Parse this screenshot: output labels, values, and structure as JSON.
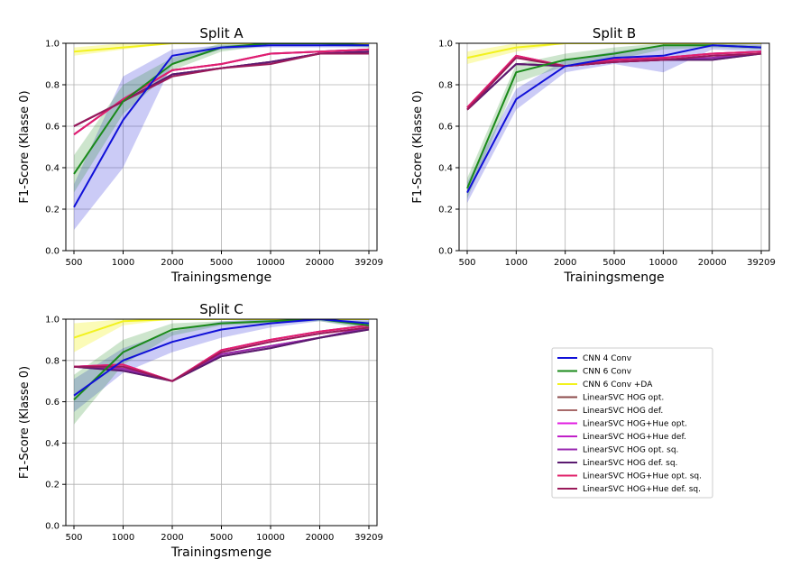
{
  "chart_data": [
    {
      "type": "line",
      "title": "Split A",
      "xlabel": "Trainingsmenge",
      "ylabel": "F1-Score (Klasse 0)",
      "categories": [
        "500",
        "1000",
        "2000",
        "5000",
        "10000",
        "20000",
        "39209"
      ],
      "ylim": [
        0,
        1.0
      ],
      "yticks": [
        "0.0",
        "0.2",
        "0.4",
        "0.6",
        "0.8",
        "1.0"
      ],
      "grid": true,
      "series": [
        {
          "name": "CNN 4 Conv",
          "values": [
            0.21,
            0.63,
            0.94,
            0.98,
            0.99,
            0.99,
            0.99
          ],
          "band_lower": [
            0.1,
            0.4,
            0.9,
            0.97,
            0.98,
            0.98,
            0.98
          ],
          "band_upper": [
            0.32,
            0.84,
            0.97,
            0.99,
            1.0,
            1.0,
            1.0
          ]
        },
        {
          "name": "CNN 6 Conv",
          "values": [
            0.37,
            0.72,
            0.9,
            0.98,
            1.0,
            1.0,
            0.99
          ],
          "band_lower": [
            0.28,
            0.66,
            0.87,
            0.96,
            0.99,
            0.99,
            0.98
          ],
          "band_upper": [
            0.46,
            0.8,
            0.93,
            1.0,
            1.0,
            1.0,
            1.0
          ]
        },
        {
          "name": "CNN 6 Conv +DA",
          "values": [
            0.96,
            0.98,
            1.0,
            1.0,
            1.0,
            1.0,
            1.0
          ],
          "band_lower": [
            0.94,
            0.97,
            1.0,
            1.0,
            1.0,
            1.0,
            1.0
          ],
          "band_upper": [
            0.98,
            1.0,
            1.0,
            1.0,
            1.0,
            1.0,
            1.0
          ]
        },
        {
          "name": "LinearSVC HOG opt.",
          "values": [
            0.6,
            0.72,
            0.85,
            0.88,
            0.91,
            0.95,
            0.96
          ]
        },
        {
          "name": "LinearSVC HOG def.",
          "values": [
            0.6,
            0.72,
            0.85,
            0.88,
            0.91,
            0.95,
            0.96
          ]
        },
        {
          "name": "LinearSVC HOG+Hue opt.",
          "values": [
            0.56,
            0.73,
            0.87,
            0.9,
            0.95,
            0.96,
            0.97
          ]
        },
        {
          "name": "LinearSVC HOG+Hue def.",
          "values": [
            0.56,
            0.73,
            0.87,
            0.9,
            0.95,
            0.96,
            0.97
          ]
        },
        {
          "name": "LinearSVC HOG opt. sq.",
          "values": [
            0.6,
            0.72,
            0.85,
            0.88,
            0.91,
            0.95,
            0.96
          ]
        },
        {
          "name": "LinearSVC HOG def. sq.",
          "values": [
            0.6,
            0.72,
            0.85,
            0.88,
            0.91,
            0.95,
            0.96
          ]
        },
        {
          "name": "LinearSVC HOG+Hue opt. sq.",
          "values": [
            0.56,
            0.73,
            0.87,
            0.9,
            0.95,
            0.96,
            0.97
          ]
        },
        {
          "name": "LinearSVC HOG+Hue def. sq.",
          "values": [
            0.6,
            0.72,
            0.84,
            0.88,
            0.9,
            0.95,
            0.95
          ]
        }
      ]
    },
    {
      "type": "line",
      "title": "Split B",
      "xlabel": "Trainingsmenge",
      "ylabel": "F1-Score (Klasse 0)",
      "categories": [
        "500",
        "1000",
        "2000",
        "5000",
        "10000",
        "20000",
        "39209"
      ],
      "ylim": [
        0,
        1.0
      ],
      "yticks": [
        "0.0",
        "0.2",
        "0.4",
        "0.6",
        "0.8",
        "1.0"
      ],
      "grid": true,
      "series": [
        {
          "name": "CNN 4 Conv",
          "values": [
            0.28,
            0.73,
            0.89,
            0.93,
            0.94,
            0.99,
            0.98
          ],
          "band_lower": [
            0.23,
            0.68,
            0.86,
            0.9,
            0.86,
            0.97,
            0.96
          ],
          "band_upper": [
            0.33,
            0.78,
            0.92,
            0.96,
            0.99,
            1.0,
            1.0
          ]
        },
        {
          "name": "CNN 6 Conv",
          "values": [
            0.3,
            0.86,
            0.92,
            0.95,
            0.99,
            0.99,
            0.98
          ],
          "band_lower": [
            0.25,
            0.81,
            0.89,
            0.92,
            0.97,
            0.98,
            0.97
          ],
          "band_upper": [
            0.35,
            0.9,
            0.95,
            0.98,
            1.0,
            1.0,
            0.99
          ]
        },
        {
          "name": "CNN 6 Conv +DA",
          "values": [
            0.93,
            0.98,
            1.0,
            1.0,
            1.0,
            1.0,
            1.0
          ],
          "band_lower": [
            0.9,
            0.96,
            1.0,
            1.0,
            1.0,
            1.0,
            1.0
          ],
          "band_upper": [
            0.96,
            1.0,
            1.0,
            1.0,
            1.0,
            1.0,
            1.0
          ]
        },
        {
          "name": "LinearSVC HOG opt.",
          "values": [
            0.68,
            0.9,
            0.89,
            0.91,
            0.92,
            0.93,
            0.95
          ]
        },
        {
          "name": "LinearSVC HOG def.",
          "values": [
            0.68,
            0.9,
            0.89,
            0.91,
            0.92,
            0.92,
            0.95
          ]
        },
        {
          "name": "LinearSVC HOG+Hue opt.",
          "values": [
            0.69,
            0.94,
            0.89,
            0.92,
            0.93,
            0.95,
            0.96
          ]
        },
        {
          "name": "LinearSVC HOG+Hue def.",
          "values": [
            0.69,
            0.94,
            0.89,
            0.92,
            0.93,
            0.95,
            0.96
          ]
        },
        {
          "name": "LinearSVC HOG opt. sq.",
          "values": [
            0.68,
            0.9,
            0.89,
            0.91,
            0.92,
            0.93,
            0.95
          ]
        },
        {
          "name": "LinearSVC HOG def. sq.",
          "values": [
            0.68,
            0.9,
            0.89,
            0.91,
            0.92,
            0.92,
            0.95
          ]
        },
        {
          "name": "LinearSVC HOG+Hue opt. sq.",
          "values": [
            0.69,
            0.94,
            0.89,
            0.92,
            0.93,
            0.95,
            0.96
          ]
        },
        {
          "name": "LinearSVC HOG+Hue def. sq.",
          "values": [
            0.68,
            0.93,
            0.89,
            0.91,
            0.92,
            0.94,
            0.95
          ]
        }
      ]
    },
    {
      "type": "line",
      "title": "Split C",
      "xlabel": "Trainingsmenge",
      "ylabel": "F1-Score (Klasse 0)",
      "categories": [
        "500",
        "1000",
        "2000",
        "5000",
        "10000",
        "20000",
        "39209"
      ],
      "ylim": [
        0,
        1.0
      ],
      "yticks": [
        "0.0",
        "0.2",
        "0.4",
        "0.6",
        "0.8",
        "1.0"
      ],
      "grid": true,
      "series": [
        {
          "name": "CNN 4 Conv",
          "values": [
            0.63,
            0.8,
            0.89,
            0.95,
            0.98,
            1.0,
            0.98
          ],
          "band_lower": [
            0.55,
            0.74,
            0.84,
            0.91,
            0.96,
            0.99,
            0.96
          ],
          "band_upper": [
            0.71,
            0.86,
            0.94,
            0.99,
            1.0,
            1.0,
            1.0
          ]
        },
        {
          "name": "CNN 6 Conv",
          "values": [
            0.61,
            0.84,
            0.95,
            0.98,
            0.99,
            1.0,
            0.97
          ],
          "band_lower": [
            0.49,
            0.78,
            0.92,
            0.97,
            0.98,
            0.99,
            0.95
          ],
          "band_upper": [
            0.73,
            0.9,
            0.98,
            0.99,
            1.0,
            1.0,
            0.99
          ]
        },
        {
          "name": "CNN 6 Conv +DA",
          "values": [
            0.91,
            0.99,
            1.0,
            1.0,
            1.0,
            1.0,
            1.0
          ],
          "band_lower": [
            0.84,
            0.97,
            1.0,
            1.0,
            1.0,
            1.0,
            1.0
          ],
          "band_upper": [
            0.98,
            1.0,
            1.0,
            1.0,
            1.0,
            1.0,
            1.0
          ]
        },
        {
          "name": "LinearSVC HOG opt.",
          "values": [
            0.77,
            0.76,
            0.7,
            0.83,
            0.87,
            0.91,
            0.96
          ]
        },
        {
          "name": "LinearSVC HOG def.",
          "values": [
            0.77,
            0.75,
            0.7,
            0.82,
            0.86,
            0.91,
            0.95
          ]
        },
        {
          "name": "LinearSVC HOG+Hue opt.",
          "values": [
            0.77,
            0.78,
            0.7,
            0.85,
            0.9,
            0.94,
            0.97
          ]
        },
        {
          "name": "LinearSVC HOG+Hue def.",
          "values": [
            0.77,
            0.78,
            0.7,
            0.85,
            0.9,
            0.94,
            0.97
          ]
        },
        {
          "name": "LinearSVC HOG opt. sq.",
          "values": [
            0.77,
            0.76,
            0.7,
            0.83,
            0.87,
            0.91,
            0.96
          ]
        },
        {
          "name": "LinearSVC HOG def. sq.",
          "values": [
            0.77,
            0.75,
            0.7,
            0.82,
            0.86,
            0.91,
            0.95
          ]
        },
        {
          "name": "LinearSVC HOG+Hue opt. sq.",
          "values": [
            0.77,
            0.78,
            0.7,
            0.85,
            0.9,
            0.94,
            0.97
          ]
        },
        {
          "name": "LinearSVC HOG+Hue def. sq.",
          "values": [
            0.77,
            0.77,
            0.7,
            0.84,
            0.89,
            0.93,
            0.96
          ]
        }
      ]
    }
  ],
  "legend": {
    "placement": "bottom-right",
    "entries": [
      {
        "name": "CNN 4 Conv",
        "color": "#1010d8"
      },
      {
        "name": "CNN 6 Conv",
        "color": "#1a8a1a"
      },
      {
        "name": "CNN 6 Conv +DA",
        "color": "#f2f21e"
      },
      {
        "name": "LinearSVC HOG opt.",
        "color": "#8b4a4a"
      },
      {
        "name": "LinearSVC HOG def.",
        "color": "#a86a6a"
      },
      {
        "name": "LinearSVC HOG+Hue opt.",
        "color": "#e21ee2"
      },
      {
        "name": "LinearSVC HOG+Hue def.",
        "color": "#c020c8"
      },
      {
        "name": "LinearSVC HOG opt. sq.",
        "color": "#9a2ab0"
      },
      {
        "name": "LinearSVC HOG def. sq.",
        "color": "#5a1a70"
      },
      {
        "name": "LinearSVC HOG+Hue opt. sq.",
        "color": "#e0206a"
      },
      {
        "name": "LinearSVC HOG+Hue def. sq.",
        "color": "#9a1a5a"
      }
    ]
  }
}
